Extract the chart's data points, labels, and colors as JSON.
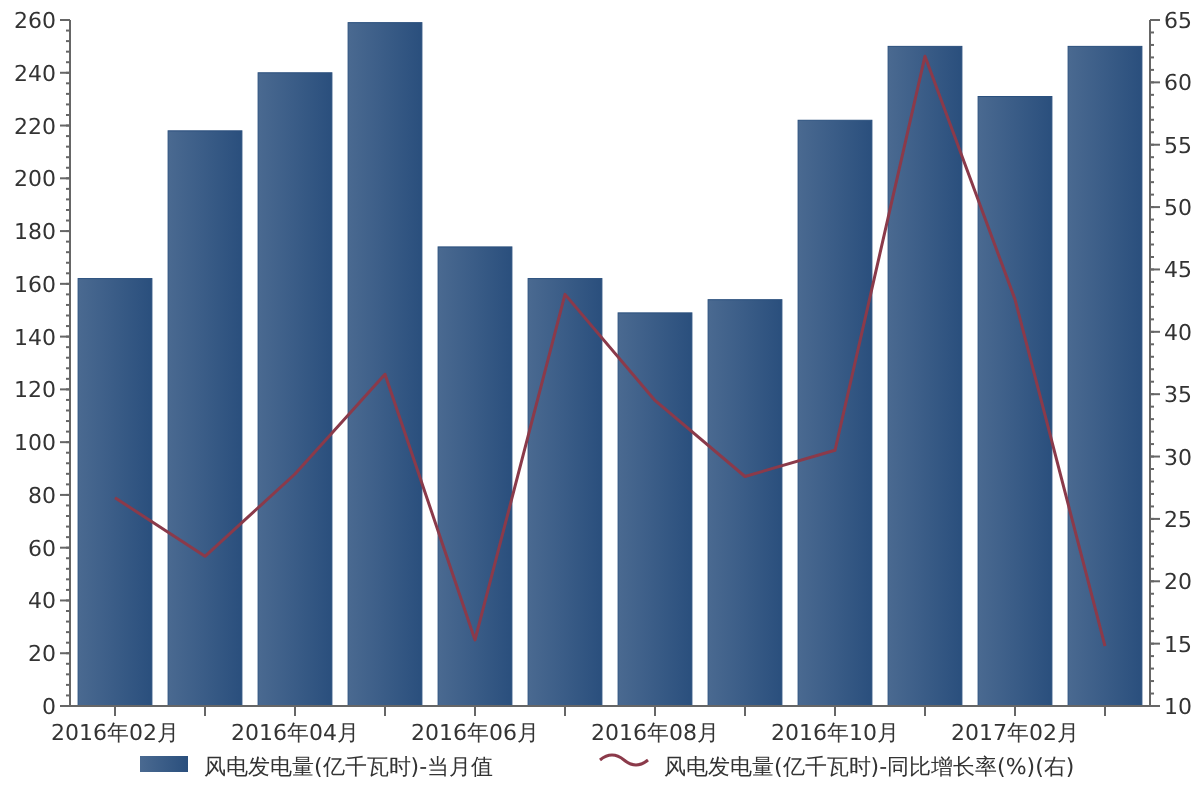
{
  "chart_data": {
    "type": "bar",
    "categories": [
      "2016年02月",
      null,
      "2016年04月",
      null,
      "2016年06月",
      null,
      "2016年08月",
      null,
      "2016年10月",
      null,
      "2017年02月",
      null
    ],
    "series": [
      {
        "name": "风电发电量(亿千瓦时)-当月值",
        "color": "#2a4f7d",
        "values": [
          162,
          218,
          240,
          259,
          174,
          162,
          149,
          154,
          222,
          250,
          231,
          250
        ]
      },
      {
        "name": "风电发电量(亿千瓦时)-同比增长率(%)(右)",
        "type": "line",
        "axis": "y2",
        "color": "#8b3a4a",
        "values": [
          26.7,
          22.0,
          28.6,
          36.6,
          15.3,
          43.0,
          34.5,
          28.4,
          30.5,
          62.1,
          42.6,
          14.8
        ]
      }
    ],
    "ylim": [
      0,
      260
    ],
    "yticks": [
      0,
      20,
      40,
      60,
      80,
      100,
      120,
      140,
      160,
      180,
      200,
      220,
      240,
      260
    ],
    "y2lim": [
      10,
      65
    ],
    "y2ticks": [
      10,
      15,
      20,
      25,
      30,
      35,
      40,
      45,
      50,
      55,
      60,
      65
    ],
    "grid": false,
    "legend": "bottom",
    "marker": "none",
    "line_style": "solid"
  }
}
